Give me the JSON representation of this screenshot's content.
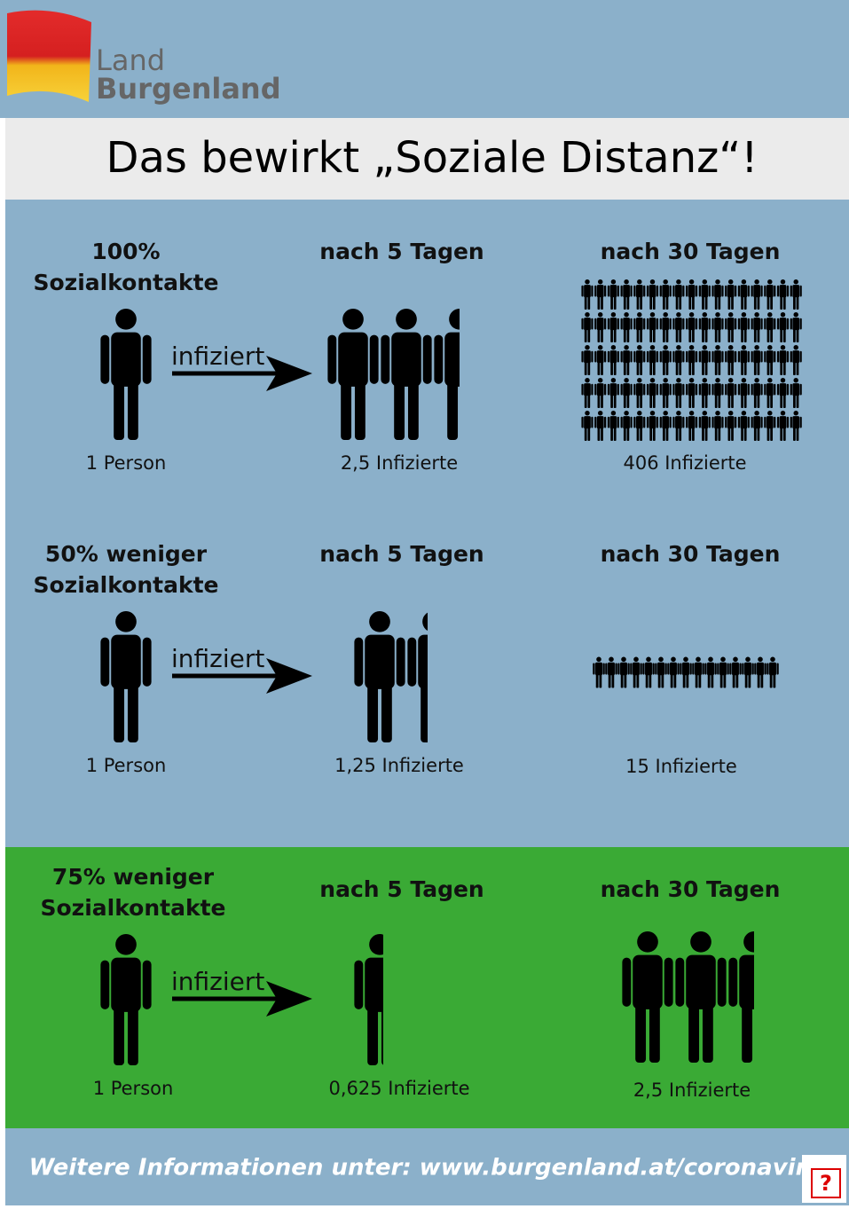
{
  "header": {
    "logo": [
      "Land",
      "Burgenland"
    ],
    "title": "Das bewirkt „Soziale Distanz“!"
  },
  "rows": [
    {
      "contacts": [
        "100%",
        "Sozialkontakte"
      ],
      "source_label": "1 Person",
      "arrow_label": "infiziert",
      "day5": {
        "heading": "nach 5 Tagen",
        "label": "2,5 Infizierte"
      },
      "day30": {
        "heading": "nach 30 Tagen",
        "label": "406 Infizierte"
      }
    },
    {
      "contacts": [
        "50% weniger",
        "Sozialkontakte"
      ],
      "source_label": "1 Person",
      "arrow_label": "infiziert",
      "day5": {
        "heading": "nach 5 Tagen",
        "label": "1,25 Infizierte"
      },
      "day30": {
        "heading": "nach 30 Tagen",
        "label": "15 Infizierte"
      }
    },
    {
      "contacts": [
        "75% weniger",
        "Sozialkontakte"
      ],
      "source_label": "1 Person",
      "arrow_label": "infiziert",
      "day5": {
        "heading": "nach 5 Tagen",
        "label": "0,625 Infizierte"
      },
      "day30": {
        "heading": "nach 30 Tagen",
        "label": "2,5 Infizierte"
      }
    }
  ],
  "footer": "Weitere Informationen unter: www.burgenland.at/coronavirus",
  "help_icon": "?"
}
